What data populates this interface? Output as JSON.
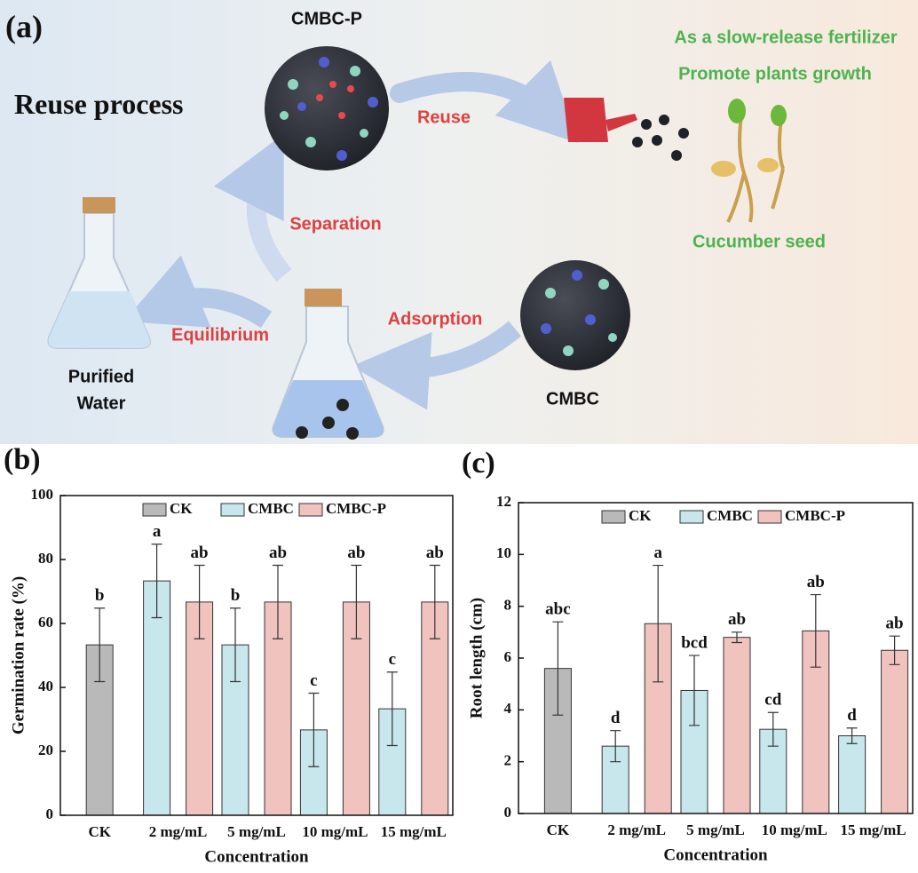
{
  "panel_a": {
    "label": "(a)",
    "heading": "Reuse process",
    "cmbc_p": "CMBC-P",
    "reuse": "Reuse",
    "benefit_1": "As a slow-release fertilizer",
    "benefit_2": "Promote plants growth",
    "seed": "Cucumber seed",
    "separation": "Separation",
    "adsorption": "Adsorption",
    "equilibrium": "Equilibrium",
    "water_1": "Purified",
    "water_2": "Water",
    "cmbc": "CMBC"
  },
  "chart_data": [
    {
      "type": "bar",
      "panel_label": "(b)",
      "ylabel": "Germination rate (%)",
      "xlabel": "Concentration",
      "categories": [
        "CK",
        "2 mg/mL",
        "5 mg/mL",
        "10 mg/mL",
        "15 mg/mL"
      ],
      "series": [
        {
          "name": "CK",
          "color": "#b9b9b9",
          "values": [
            53.3,
            null,
            null,
            null,
            null
          ],
          "errors": [
            11.5,
            null,
            null,
            null,
            null
          ],
          "letters": [
            "b",
            null,
            null,
            null,
            null
          ]
        },
        {
          "name": "CMBC",
          "color": "#c8e7ec",
          "values": [
            null,
            73.3,
            53.3,
            26.7,
            33.3
          ],
          "errors": [
            null,
            11.5,
            11.5,
            11.5,
            11.5
          ],
          "letters": [
            null,
            "a",
            "b",
            "c",
            "c"
          ]
        },
        {
          "name": "CMBC-P",
          "color": "#f1c3bf",
          "values": [
            null,
            66.7,
            66.7,
            66.7,
            66.7
          ],
          "errors": [
            null,
            11.5,
            11.5,
            11.5,
            11.5
          ],
          "letters": [
            null,
            "ab",
            "ab",
            "ab",
            "ab"
          ]
        }
      ],
      "ylim": [
        0,
        100
      ],
      "yticks": [
        0,
        20,
        40,
        60,
        80,
        100
      ],
      "legend": "top"
    },
    {
      "type": "bar",
      "panel_label": "(c)",
      "ylabel": "Root length (cm)",
      "xlabel": "Concentration",
      "categories": [
        "CK",
        "2 mg/mL",
        "5 mg/mL",
        "10 mg/mL",
        "15 mg/mL"
      ],
      "series": [
        {
          "name": "CK",
          "color": "#b9b9b9",
          "values": [
            5.6,
            null,
            null,
            null,
            null
          ],
          "errors": [
            1.8,
            null,
            null,
            null,
            null
          ],
          "letters": [
            "abc",
            null,
            null,
            null,
            null
          ]
        },
        {
          "name": "CMBC",
          "color": "#c8e7ec",
          "values": [
            null,
            2.6,
            4.75,
            3.25,
            3.0
          ],
          "errors": [
            null,
            0.6,
            1.35,
            0.65,
            0.3
          ],
          "letters": [
            null,
            "d",
            "bcd",
            "cd",
            "d"
          ]
        },
        {
          "name": "CMBC-P",
          "color": "#f1c3bf",
          "values": [
            null,
            7.33,
            6.8,
            7.05,
            6.3
          ],
          "errors": [
            null,
            2.25,
            0.2,
            1.4,
            0.55
          ],
          "letters": [
            null,
            "a",
            "ab",
            "ab",
            "ab"
          ]
        }
      ],
      "ylim": [
        0,
        12
      ],
      "yticks": [
        0,
        2,
        4,
        6,
        8,
        10,
        12
      ],
      "legend": "top"
    }
  ]
}
